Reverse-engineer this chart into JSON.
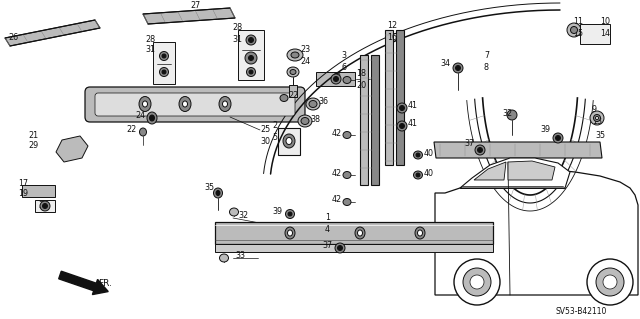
{
  "bg_color": "#ffffff",
  "diagram_code": "SV53-B42110",
  "fig_width": 6.4,
  "fig_height": 3.19
}
